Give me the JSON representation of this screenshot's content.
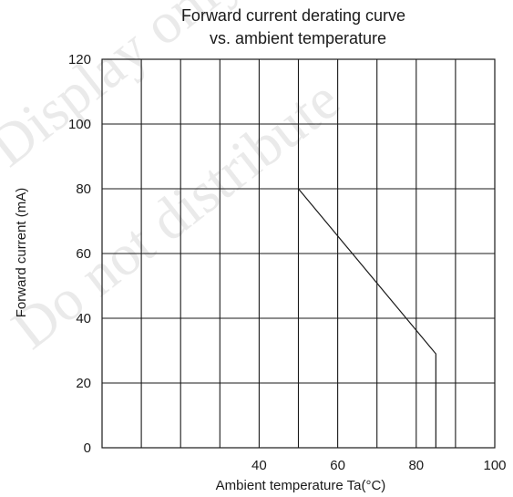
{
  "chart_data": {
    "type": "line",
    "title_line1": "Forward current derating curve",
    "title_line2": "vs. ambient temperature",
    "xlabel": "Ambient temperature Ta(°C)",
    "ylabel": "Forward current (mA)",
    "xlim": [
      0,
      100
    ],
    "ylim": [
      0,
      120
    ],
    "x_tick_labels": [
      {
        "value": 40,
        "label": "40"
      },
      {
        "value": 60,
        "label": "60"
      },
      {
        "value": 80,
        "label": "80"
      },
      {
        "value": 100,
        "label": "100"
      }
    ],
    "y_tick_labels": [
      {
        "value": 0,
        "label": "0"
      },
      {
        "value": 20,
        "label": "20"
      },
      {
        "value": 40,
        "label": "40"
      },
      {
        "value": 60,
        "label": "60"
      },
      {
        "value": 80,
        "label": "80"
      },
      {
        "value": 100,
        "label": "100"
      },
      {
        "value": 120,
        "label": "120"
      }
    ],
    "x_gridlines": [
      10,
      20,
      30,
      40,
      50,
      60,
      70,
      80,
      90
    ],
    "y_gridlines": [
      20,
      40,
      60,
      80,
      100
    ],
    "grid": true,
    "series": [
      {
        "x": [
          50,
          85,
          85
        ],
        "y": [
          80,
          29,
          0
        ]
      }
    ],
    "colors": {
      "line": "#1a1a1a",
      "grid": "#1a1a1a",
      "text": "#1a1a1a",
      "watermark": "#d0d0d0"
    }
  },
  "watermark": {
    "line1": "Display only",
    "line2": "Do not distribute"
  }
}
